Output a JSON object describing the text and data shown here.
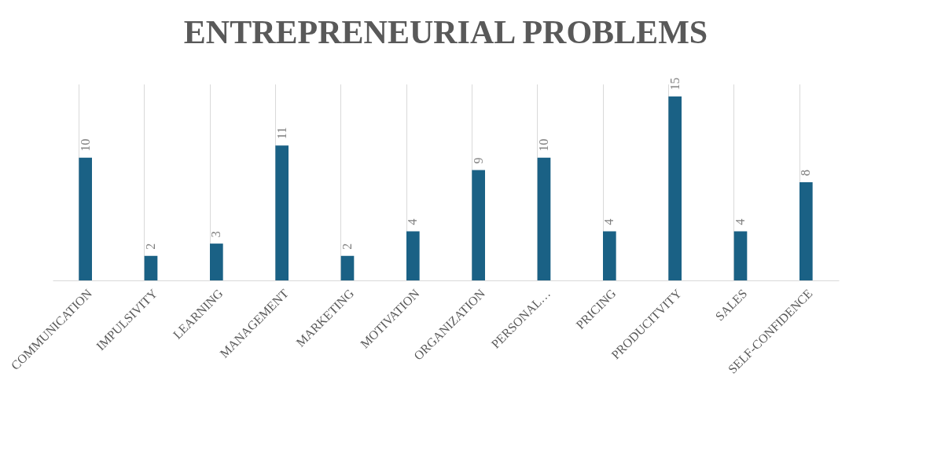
{
  "chart_data": {
    "type": "bar",
    "title": "ENTREPRENEURIAL PROBLEMS",
    "categories": [
      "COMMUNICATION",
      "IMPULSIVITY",
      "LEARNING",
      "MANAGEMENT",
      "MARKETING",
      "MOTIVATION",
      "ORGANIZATION",
      "PERSONAL…",
      "PRICING",
      "PRODUCITVITY",
      "SALES",
      "SELF-CONFIDENCE"
    ],
    "values": [
      10,
      2,
      3,
      11,
      2,
      4,
      9,
      10,
      4,
      15,
      4,
      8
    ],
    "color": "#1a6185",
    "ylim": [
      0,
      16
    ],
    "data_labels": true,
    "grid": "x",
    "tick_labels": "x"
  }
}
